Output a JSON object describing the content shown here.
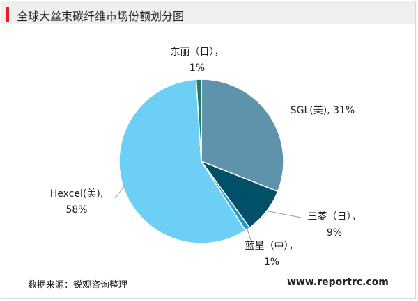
{
  "title": "全球大丝束碳纤维市场份额划分图",
  "source": "数据来源：锐观咨询整理",
  "watermark": "www.reportrc.com",
  "colors": {
    "accent": "#e41e26",
    "title_bg": "#efefef"
  },
  "chart_data": {
    "type": "pie",
    "title": "全球大丝束碳纤维市场份额划分图",
    "slices": [
      {
        "label": "SGL(美), 31%",
        "value": 31,
        "color": "#5f93ab"
      },
      {
        "label": "三菱（日），9%",
        "value": 9,
        "color": "#005068"
      },
      {
        "label": "蓝星（中），1%",
        "value": 1,
        "color": "#1e9cd7"
      },
      {
        "label": "Hexcel(美), 58%",
        "value": 58,
        "color": "#6dcff6"
      },
      {
        "label": "东丽（日），1%",
        "value": 1,
        "color": "#1f7a6e"
      }
    ],
    "label_lines": [
      [
        "SGL(美), 31%"
      ],
      [
        "三菱（日），",
        "9%"
      ],
      [
        "蓝星（中），",
        "1%"
      ],
      [
        "Hexcel(美),",
        "58%"
      ],
      [
        "东丽（日），",
        "1%"
      ]
    ]
  }
}
